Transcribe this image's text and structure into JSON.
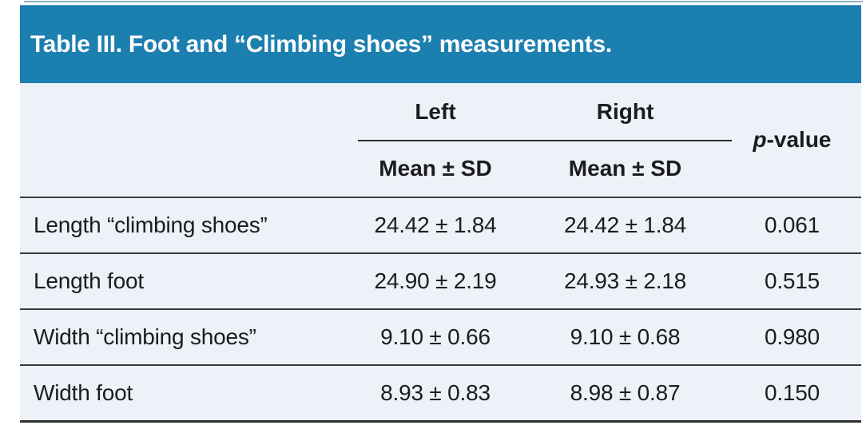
{
  "table": {
    "title": "Table III. Foot and “Climbing shoes” measurements.",
    "columns": {
      "group_left": "Left",
      "group_right": "Right",
      "sub_left": "Mean ± SD",
      "sub_right": "Mean ± SD",
      "pvalue_prefix": "p",
      "pvalue_suffix": "-value"
    },
    "rows": [
      {
        "label": "Length “climbing shoes”",
        "left": "24.42 ± 1.84",
        "right": "24.42 ± 1.84",
        "p": "0.061"
      },
      {
        "label": "Length foot",
        "left": "24.90 ± 2.19",
        "right": "24.93 ± 2.18",
        "p": "0.515"
      },
      {
        "label": "Width “climbing shoes”",
        "left": "9.10 ± 0.66",
        "right": "9.10 ± 0.68",
        "p": "0.980"
      },
      {
        "label": "Width foot",
        "left": "8.93 ± 0.83",
        "right": "8.98 ± 0.87",
        "p": "0.150"
      }
    ],
    "colors": {
      "header_bg": "#1b7fb0",
      "panel_bg": "#edf1f8",
      "rule": "#3a3a3a",
      "title_text": "#ffffff",
      "body_text": "#1c1c1e",
      "top_line": "#8fafc6"
    }
  }
}
